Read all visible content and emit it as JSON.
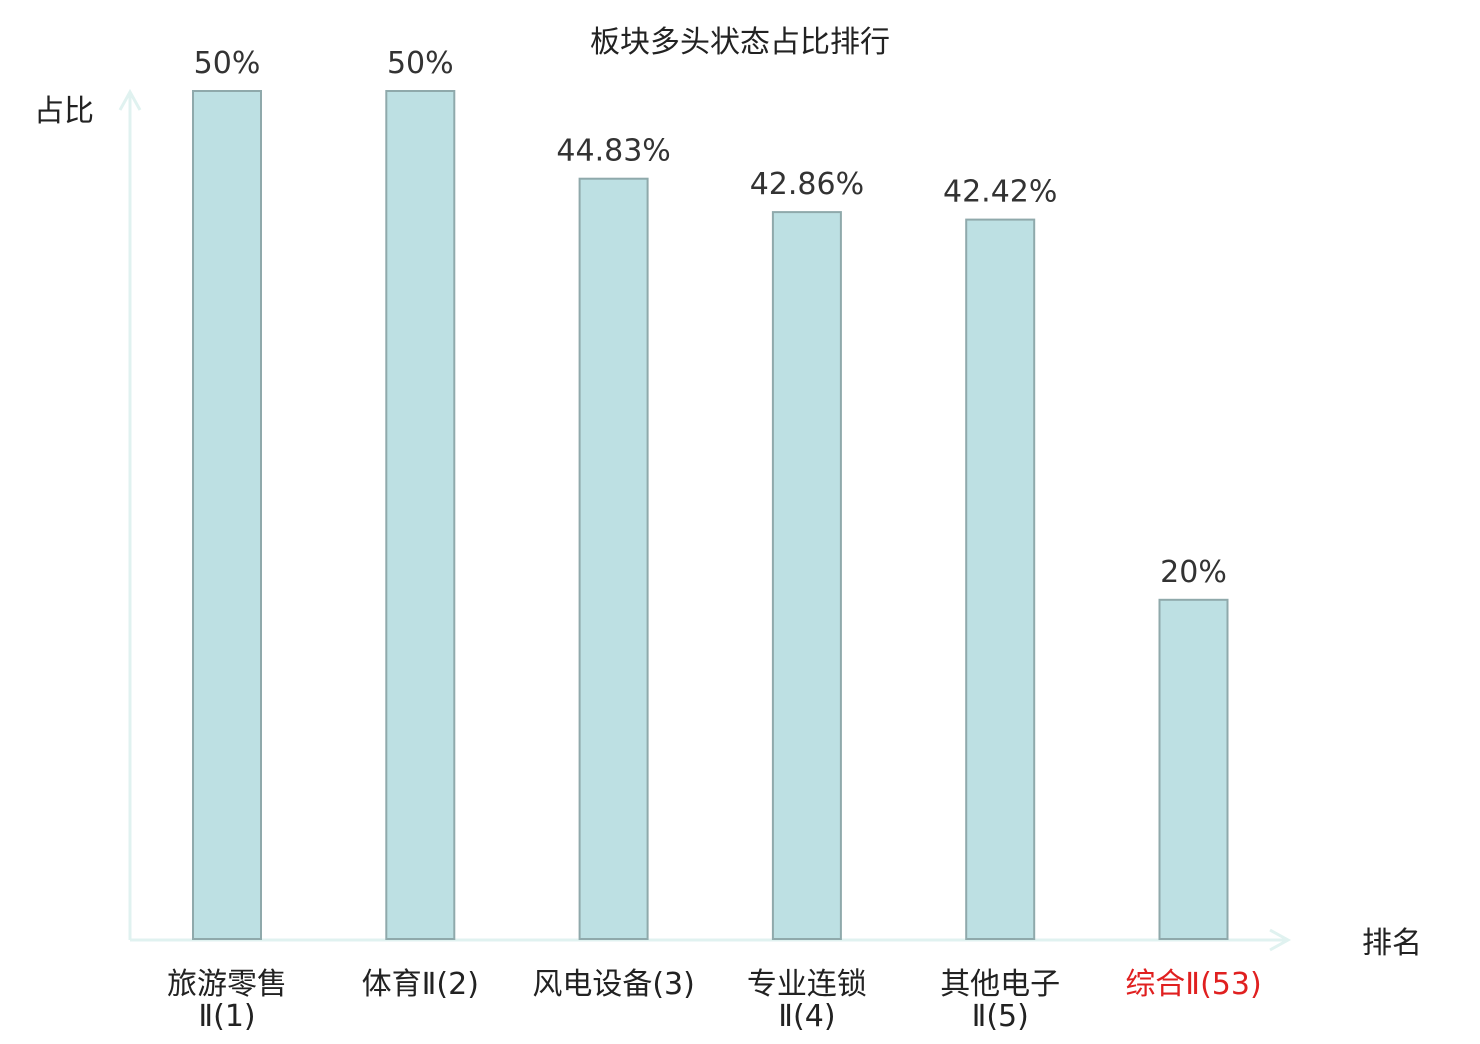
{
  "chart_data": {
    "type": "bar",
    "title": "板块多头状态占比排行",
    "ylabel": "占比",
    "xlabel": "排名",
    "ylim": [
      0,
      50
    ],
    "grid": false,
    "categories": [
      {
        "lines": [
          "旅游零售",
          "Ⅱ(1)"
        ],
        "highlight": false
      },
      {
        "lines": [
          "体育Ⅱ(2)"
        ],
        "highlight": false
      },
      {
        "lines": [
          "风电设备(3)"
        ],
        "highlight": false
      },
      {
        "lines": [
          "专业连锁",
          "Ⅱ(4)"
        ],
        "highlight": false
      },
      {
        "lines": [
          "其他电子",
          "Ⅱ(5)"
        ],
        "highlight": false
      },
      {
        "lines": [
          "综合Ⅱ(53)"
        ],
        "highlight": true
      }
    ],
    "values": [
      50,
      50,
      44.83,
      42.86,
      42.42,
      20
    ],
    "value_labels": [
      "50%",
      "50%",
      "44.83%",
      "42.86%",
      "42.42%",
      "20%"
    ],
    "colors": {
      "bar_fill": "#bde0e3",
      "bar_stroke": "#8fa9ab",
      "axis": "#e0f2f0",
      "text": "#222222",
      "value_text": "#333333",
      "highlight_text": "#e02020"
    }
  }
}
